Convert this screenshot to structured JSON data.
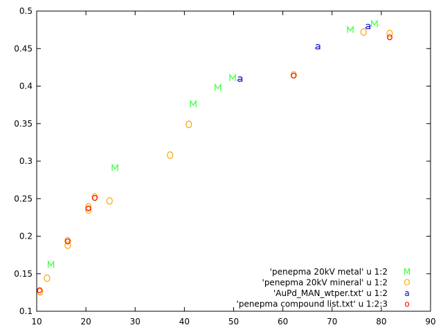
{
  "chart_data": {
    "type": "scatter",
    "title": "",
    "xlabel": "",
    "ylabel": "",
    "xlim": [
      10,
      90
    ],
    "ylim": [
      0.1,
      0.5
    ],
    "grid": false,
    "legend_position": "bottom-right",
    "x_ticks": [
      "10",
      "20",
      "30",
      "40",
      "50",
      "60",
      "70",
      "80",
      "90"
    ],
    "x_tick_values": [
      10,
      20,
      30,
      40,
      50,
      60,
      70,
      80,
      90
    ],
    "y_ticks": [
      "0.1",
      "0.15",
      "0.2",
      "0.25",
      "0.3",
      "0.35",
      "0.4",
      "0.45",
      "0.5"
    ],
    "y_tick_values": [
      0.1,
      0.15,
      0.2,
      0.25,
      0.3,
      0.35,
      0.4,
      0.45,
      0.5
    ],
    "series": [
      {
        "name": "'penepma 20kV metal' u 1:2",
        "marker": "M",
        "color": "#33ff33",
        "points": [
          [
            12.9,
            0.162
          ],
          [
            25.9,
            0.291
          ],
          [
            41.8,
            0.376
          ],
          [
            46.8,
            0.398
          ],
          [
            49.8,
            0.411
          ],
          [
            73.7,
            0.475
          ],
          [
            78.6,
            0.483
          ]
        ]
      },
      {
        "name": "'penepma 20kV mineral' u 1:2",
        "marker": "O",
        "color": "#ffa500",
        "points": [
          [
            10.7,
            0.126
          ],
          [
            12.1,
            0.144
          ],
          [
            16.3,
            0.188
          ],
          [
            16.3,
            0.194
          ],
          [
            20.5,
            0.235
          ],
          [
            20.5,
            0.239
          ],
          [
            21.8,
            0.252
          ],
          [
            24.8,
            0.247
          ],
          [
            37.1,
            0.308
          ],
          [
            40.9,
            0.349
          ],
          [
            62.2,
            0.415
          ],
          [
            76.4,
            0.472
          ],
          [
            81.7,
            0.47
          ]
        ]
      },
      {
        "name": "'AuPd_MAN_wtper.txt' u 1:2",
        "marker": "a",
        "color": "#0000cc",
        "points": [
          [
            51.3,
            0.41
          ],
          [
            67.1,
            0.453
          ],
          [
            77.3,
            0.48
          ]
        ]
      },
      {
        "name": "'penepma compound list.txt' u 1:2:3",
        "marker": "o",
        "color": "#ff0000",
        "points": [
          [
            10.6,
            0.129
          ],
          [
            16.3,
            0.194
          ],
          [
            20.5,
            0.238
          ],
          [
            21.8,
            0.252
          ],
          [
            62.2,
            0.415
          ],
          [
            81.7,
            0.466
          ]
        ]
      }
    ]
  }
}
